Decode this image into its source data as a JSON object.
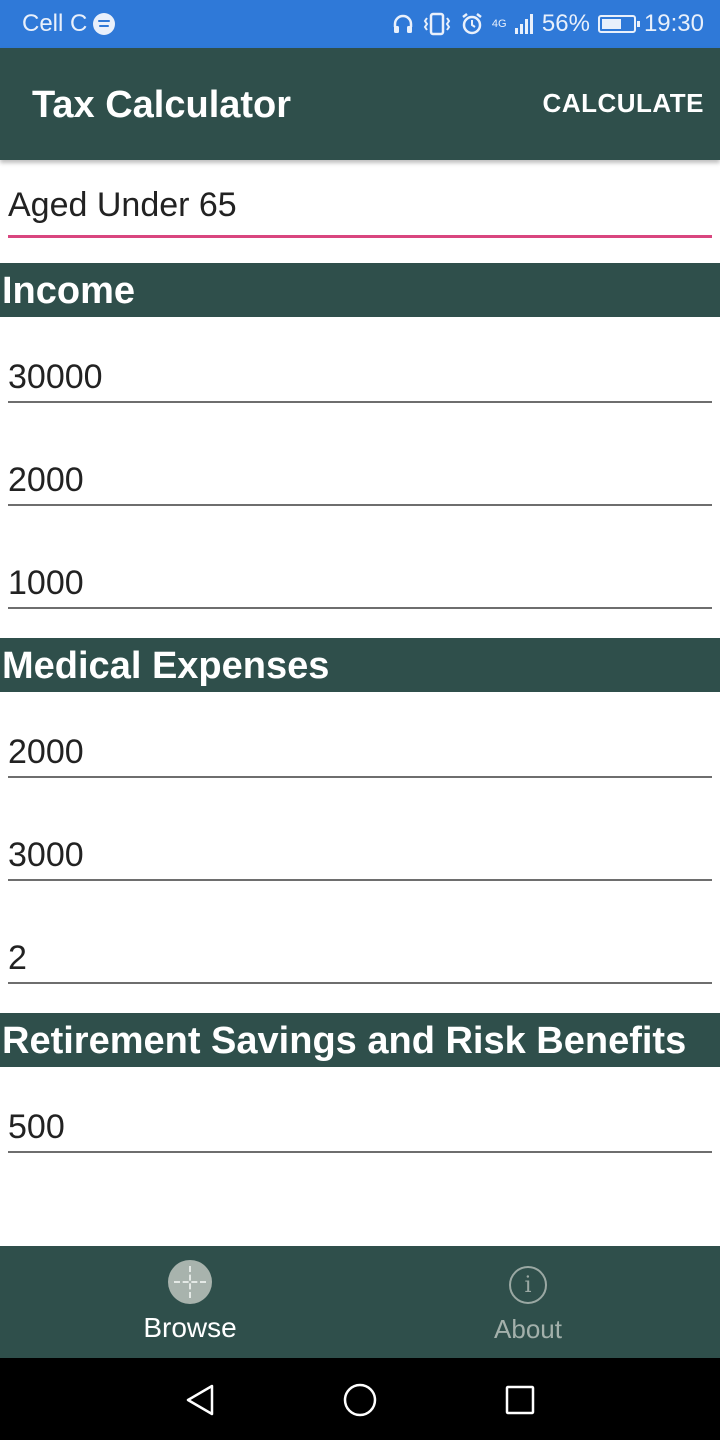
{
  "status_bar": {
    "carrier": "Cell C",
    "network": "4G",
    "battery": "56%",
    "time": "19:30",
    "battery_level": 0.56,
    "icons": [
      "spotify-icon",
      "headphones-icon",
      "vibrate-icon",
      "alarm-icon",
      "signal-icon",
      "battery-icon"
    ]
  },
  "app_bar": {
    "title": "Tax Calculator",
    "action_label": "CALCULATE"
  },
  "age_group": {
    "selected": "Aged Under 65",
    "accent_color": "#d9467f"
  },
  "sections": {
    "income": {
      "title": "Income",
      "fields": [
        "30000",
        "2000",
        "1000"
      ]
    },
    "medical": {
      "title": "Medical Expenses",
      "fields": [
        "2000",
        "3000",
        "2"
      ]
    },
    "retirement": {
      "title": "Retirement Savings and Risk Benefits",
      "fields": [
        "500"
      ]
    }
  },
  "bottom_nav": {
    "browse_label": "Browse",
    "about_label": "About"
  },
  "colors": {
    "status_bar": "#2f79d8",
    "primary": "#2f4f4b",
    "accent": "#d9467f"
  }
}
